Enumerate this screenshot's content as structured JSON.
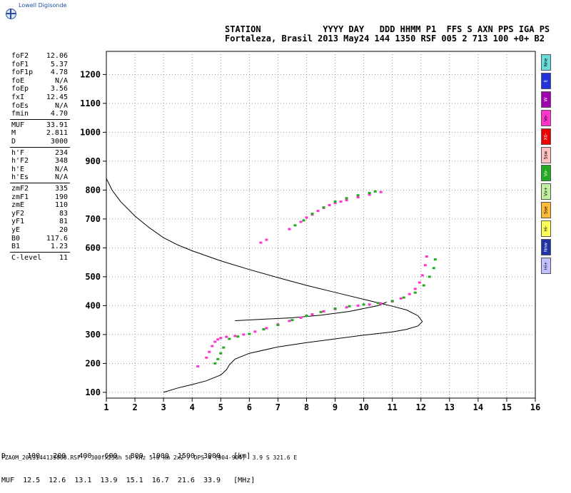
{
  "logo": {
    "text": "Lowell Digisonde",
    "icon": "globe-icon"
  },
  "header": {
    "line1": "STATION            YYYY DAY   DDD HHMM P1  FFS S AXN PPS IGA PS",
    "line2": "Fortaleza, Brasil 2013 May24 144 1350 RSF 005 2 713 100 +0+ B2"
  },
  "params": [
    {
      "k": "foF2",
      "v": "12.06"
    },
    {
      "k": "foF1",
      "v": "5.37"
    },
    {
      "k": "foF1p",
      "v": "4.78"
    },
    {
      "k": "foE",
      "v": "N/A"
    },
    {
      "k": "foEp",
      "v": "3.56"
    },
    {
      "k": "fxI",
      "v": "12.45"
    },
    {
      "k": "foEs",
      "v": "N/A"
    },
    {
      "k": "fmin",
      "v": "4.70"
    },
    {
      "k": "MUF",
      "v": "33.91"
    },
    {
      "k": "M",
      "v": "2.811"
    },
    {
      "k": "D",
      "v": "3000"
    },
    {
      "k": "h'F",
      "v": "234"
    },
    {
      "k": "h'F2",
      "v": "348"
    },
    {
      "k": "h'E",
      "v": "N/A"
    },
    {
      "k": "h'Es",
      "v": "N/A"
    },
    {
      "k": "zmF2",
      "v": "335"
    },
    {
      "k": "zmF1",
      "v": "190"
    },
    {
      "k": "zmE",
      "v": "110"
    },
    {
      "k": "yF2",
      "v": "83"
    },
    {
      "k": "yF1",
      "v": "81"
    },
    {
      "k": "yE",
      "v": "20"
    },
    {
      "k": "B0",
      "v": "117.6"
    },
    {
      "k": "B1",
      "v": "1.23"
    },
    {
      "k": "C-level",
      "v": "11"
    }
  ],
  "legend": [
    {
      "label": "Nne",
      "color": "#66dddd"
    },
    {
      "label": "E",
      "color": "#2233dd"
    },
    {
      "label": "W",
      "color": "#a000b0"
    },
    {
      "label": "Vo-",
      "color": "#ff33cc"
    },
    {
      "label": "X0-",
      "color": "#ee0000"
    },
    {
      "label": "Ssw",
      "color": "#ffc0c0"
    },
    {
      "label": "Vo-",
      "color": "#22aa22"
    },
    {
      "label": "Vx+",
      "color": "#c0f0a0"
    },
    {
      "label": "Sse",
      "color": "#ffbb33"
    },
    {
      "label": "Hi-",
      "color": "#ffff55"
    },
    {
      "label": "Nnw",
      "color": "#2233aa"
    },
    {
      "label": "Hi+",
      "color": "#c0c0ff"
    }
  ],
  "distance_table": {
    "d_row": "D     100   200   400   600   800  1000  1500  3000   [km]",
    "muf_row": "MUF  12.5  12.6  13.1  13.9  15.1  16.7  21.6  33.9   [MHz]"
  },
  "footer": "FZA0M_2013144135000.RSF / 300fx256h 50 kHz 5.0 km 2x2 / DPS-4 (904-904)  3.9 S 321.6 E",
  "chart_data": {
    "type": "scatter",
    "title": "",
    "xlabel": "",
    "ylabel": "",
    "xlim": [
      1,
      16
    ],
    "ylim": [
      80,
      1280
    ],
    "xticks": [
      1,
      2,
      3,
      4,
      5,
      6,
      7,
      8,
      9,
      10,
      11,
      12,
      13,
      14,
      15,
      16
    ],
    "yticks": [
      100,
      200,
      300,
      400,
      500,
      600,
      700,
      800,
      900,
      1000,
      1100,
      1200
    ],
    "grid": true,
    "series": [
      {
        "color": "#ff33cc",
        "points": [
          [
            4.5,
            220
          ],
          [
            4.6,
            240
          ],
          [
            4.7,
            260
          ],
          [
            4.8,
            275
          ],
          [
            4.9,
            283
          ],
          [
            5.0,
            288
          ],
          [
            5.2,
            292
          ],
          [
            5.5,
            295
          ],
          [
            5.8,
            300
          ],
          [
            6.2,
            310
          ],
          [
            6.6,
            322
          ],
          [
            7.0,
            335
          ],
          [
            7.4,
            347
          ],
          [
            7.8,
            358
          ],
          [
            8.2,
            370
          ],
          [
            8.6,
            380
          ],
          [
            9.0,
            388
          ],
          [
            9.4,
            394
          ],
          [
            9.8,
            400
          ],
          [
            10.2,
            404
          ],
          [
            10.6,
            408
          ],
          [
            11.0,
            415
          ],
          [
            11.3,
            425
          ],
          [
            11.6,
            440
          ],
          [
            11.8,
            458
          ],
          [
            11.95,
            480
          ],
          [
            12.05,
            505
          ],
          [
            12.15,
            540
          ],
          [
            12.2,
            570
          ],
          [
            4.2,
            190
          ],
          [
            6.4,
            618
          ],
          [
            6.6,
            628
          ],
          [
            7.4,
            665
          ],
          [
            7.8,
            690
          ],
          [
            8.2,
            715
          ],
          [
            8.6,
            738
          ],
          [
            9.0,
            755
          ],
          [
            9.4,
            765
          ],
          [
            9.8,
            775
          ],
          [
            10.2,
            784
          ],
          [
            10.6,
            793
          ],
          [
            8.0,
            705
          ],
          [
            8.4,
            728
          ],
          [
            8.8,
            748
          ],
          [
            9.2,
            760
          ]
        ]
      },
      {
        "color": "#22aa22",
        "points": [
          [
            4.8,
            200
          ],
          [
            4.9,
            215
          ],
          [
            5.0,
            235
          ],
          [
            5.1,
            255
          ],
          [
            5.3,
            285
          ],
          [
            5.6,
            293
          ],
          [
            6.0,
            302
          ],
          [
            6.5,
            318
          ],
          [
            7.0,
            333
          ],
          [
            7.5,
            350
          ],
          [
            8.0,
            365
          ],
          [
            8.5,
            378
          ],
          [
            9.0,
            390
          ],
          [
            9.5,
            398
          ],
          [
            10.0,
            404
          ],
          [
            10.5,
            409
          ],
          [
            11.0,
            416
          ],
          [
            11.4,
            428
          ],
          [
            11.8,
            445
          ],
          [
            12.1,
            470
          ],
          [
            12.3,
            500
          ],
          [
            12.45,
            530
          ],
          [
            12.5,
            560
          ],
          [
            8.2,
            718
          ],
          [
            8.6,
            740
          ],
          [
            9.0,
            760
          ],
          [
            9.4,
            772
          ],
          [
            9.8,
            782
          ],
          [
            10.2,
            790
          ],
          [
            10.4,
            795
          ],
          [
            7.6,
            678
          ],
          [
            7.9,
            695
          ]
        ]
      }
    ],
    "curves": [
      {
        "name": "",
        "points": [
          [
            1.0,
            840
          ],
          [
            1.2,
            800
          ],
          [
            1.5,
            760
          ],
          [
            2.0,
            710
          ],
          [
            2.5,
            670
          ],
          [
            3.0,
            635
          ],
          [
            3.5,
            610
          ],
          [
            4.0,
            590
          ],
          [
            5.0,
            555
          ],
          [
            6.0,
            525
          ],
          [
            7.0,
            497
          ],
          [
            8.0,
            470
          ],
          [
            9.0,
            446
          ],
          [
            10.0,
            422
          ],
          [
            10.5,
            410
          ],
          [
            11.0,
            398
          ],
          [
            11.5,
            385
          ],
          [
            11.9,
            365
          ],
          [
            12.05,
            345
          ],
          [
            11.9,
            330
          ],
          [
            11.5,
            318
          ],
          [
            11.0,
            309
          ],
          [
            10.0,
            298
          ],
          [
            9.0,
            285
          ],
          [
            8.0,
            272
          ],
          [
            7.0,
            257
          ],
          [
            6.0,
            235
          ],
          [
            5.5,
            215
          ],
          [
            5.3,
            195
          ],
          [
            5.2,
            178
          ],
          [
            5.0,
            160
          ],
          [
            4.5,
            140
          ],
          [
            4.0,
            127
          ],
          [
            3.5,
            115
          ],
          [
            3.0,
            100
          ]
        ]
      },
      {
        "name": "",
        "points": [
          [
            5.5,
            348
          ],
          [
            6.5,
            353
          ],
          [
            7.5,
            358
          ],
          [
            8.5,
            367
          ],
          [
            9.5,
            380
          ],
          [
            10.5,
            400
          ],
          [
            10.8,
            412
          ]
        ]
      }
    ]
  }
}
